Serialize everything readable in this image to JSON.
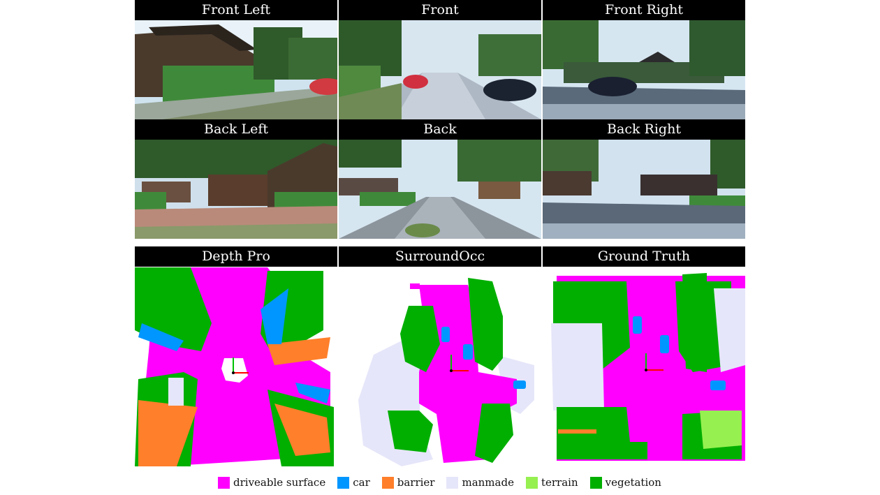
{
  "panels": {
    "front_left": "Front Left",
    "front": "Front",
    "front_right": "Front Right",
    "back_left": "Back Left",
    "back": "Back",
    "back_right": "Back Right",
    "depth_pro": "Depth Pro",
    "surroundocc": "SurroundOcc",
    "ground_truth": "Ground Truth"
  },
  "legend": [
    {
      "label": "driveable surface",
      "color": "#ff00ff"
    },
    {
      "label": "car",
      "color": "#0096ff"
    },
    {
      "label": "barrier",
      "color": "#ff7f2a"
    },
    {
      "label": "manmade",
      "color": "#e6e6fa"
    },
    {
      "label": "terrain",
      "color": "#96f050"
    },
    {
      "label": "vegetation",
      "color": "#00af00"
    }
  ]
}
